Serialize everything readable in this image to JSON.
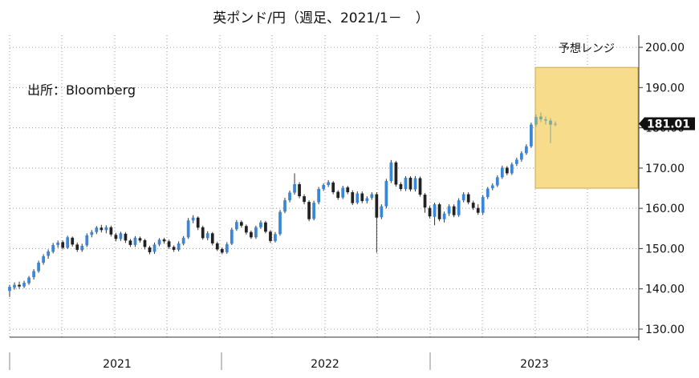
{
  "title": "英ポンド/円（週足、2021/1－　）",
  "source_note": "出所：Bloomberg",
  "forecast_label": "予想レンジ",
  "current_value_label": "181.01",
  "colors": {
    "up": "#3a86d8",
    "down": "#222222",
    "wick": "#333333",
    "forecast_fill": "#f7dc8c",
    "forecast_stroke": "#c9a84a",
    "current_bg": "#111111"
  },
  "chart_data": {
    "type": "candlestick",
    "ylim": [
      128,
      203
    ],
    "y_ticks": [
      "130.00",
      "140.00",
      "150.00",
      "160.00",
      "170.00",
      "180.00",
      "190.00",
      "200.00"
    ],
    "x_labels": [
      "2021",
      "2022",
      "2023"
    ],
    "forecast_range": {
      "low": 165,
      "high": 195
    },
    "current_value": 181.01,
    "candles": [
      [
        139.5,
        140.5,
        138.0,
        141.0
      ],
      [
        140.3,
        141.0,
        139.8,
        141.6
      ],
      [
        141.0,
        140.6,
        140.0,
        141.8
      ],
      [
        140.6,
        141.5,
        140.2,
        142.0
      ],
      [
        141.4,
        142.8,
        141.0,
        143.2
      ],
      [
        142.9,
        144.4,
        142.3,
        144.9
      ],
      [
        144.4,
        146.5,
        144.0,
        147.0
      ],
      [
        146.5,
        148.1,
        146.0,
        148.6
      ],
      [
        148.2,
        149.3,
        147.5,
        149.8
      ],
      [
        149.2,
        150.9,
        148.8,
        151.4
      ],
      [
        150.9,
        151.5,
        150.2,
        152.0
      ],
      [
        151.6,
        150.2,
        149.8,
        152.0
      ],
      [
        150.2,
        152.8,
        149.9,
        153.2
      ],
      [
        152.7,
        151.0,
        150.5,
        153.0
      ],
      [
        151.0,
        149.7,
        149.2,
        151.5
      ],
      [
        149.6,
        150.7,
        149.2,
        151.2
      ],
      [
        150.8,
        153.3,
        150.4,
        153.8
      ],
      [
        153.4,
        154.1,
        152.8,
        154.6
      ],
      [
        154.1,
        155.2,
        153.6,
        155.6
      ],
      [
        155.2,
        154.6,
        154.0,
        155.9
      ],
      [
        154.6,
        155.3,
        153.8,
        155.8
      ],
      [
        155.3,
        153.5,
        153.0,
        155.7
      ],
      [
        153.4,
        152.4,
        151.8,
        153.9
      ],
      [
        152.4,
        153.8,
        151.9,
        154.2
      ],
      [
        153.7,
        152.0,
        151.4,
        154.1
      ],
      [
        152.0,
        150.9,
        150.4,
        152.4
      ],
      [
        150.9,
        152.7,
        150.4,
        153.1
      ],
      [
        152.6,
        152.0,
        151.5,
        153.0
      ],
      [
        152.1,
        150.4,
        149.8,
        152.4
      ],
      [
        150.3,
        149.1,
        148.6,
        150.7
      ],
      [
        149.2,
        151.0,
        148.7,
        151.5
      ],
      [
        151.0,
        152.2,
        150.6,
        152.6
      ],
      [
        152.3,
        151.8,
        151.2,
        152.7
      ],
      [
        151.8,
        150.4,
        149.9,
        152.2
      ],
      [
        150.4,
        149.7,
        149.2,
        150.8
      ],
      [
        149.7,
        151.3,
        149.3,
        151.8
      ],
      [
        151.2,
        152.7,
        150.8,
        153.1
      ],
      [
        152.8,
        157.0,
        152.4,
        157.6
      ],
      [
        157.0,
        157.7,
        156.3,
        158.3
      ],
      [
        157.7,
        155.2,
        154.6,
        158.0
      ],
      [
        155.3,
        152.6,
        152.2,
        155.7
      ],
      [
        152.6,
        153.8,
        152.1,
        154.3
      ],
      [
        153.8,
        151.3,
        150.8,
        154.1
      ],
      [
        151.3,
        149.8,
        149.4,
        151.7
      ],
      [
        149.9,
        149.0,
        148.6,
        150.3
      ],
      [
        149.1,
        151.1,
        148.7,
        151.6
      ],
      [
        151.2,
        154.7,
        150.9,
        155.2
      ],
      [
        154.8,
        156.6,
        154.4,
        157.1
      ],
      [
        156.6,
        155.7,
        155.2,
        157.0
      ],
      [
        155.6,
        154.0,
        153.5,
        156.0
      ],
      [
        154.1,
        152.8,
        152.4,
        154.5
      ],
      [
        152.8,
        155.3,
        152.4,
        155.7
      ],
      [
        155.3,
        156.5,
        154.9,
        157.0
      ],
      [
        156.5,
        154.2,
        153.8,
        156.9
      ],
      [
        154.2,
        151.9,
        151.4,
        154.6
      ],
      [
        151.9,
        153.6,
        151.5,
        154.1
      ],
      [
        153.6,
        159.1,
        153.2,
        159.6
      ],
      [
        159.2,
        162.0,
        158.8,
        162.6
      ],
      [
        162.0,
        163.9,
        161.5,
        164.4
      ],
      [
        163.9,
        166.0,
        163.4,
        168.7
      ],
      [
        166.0,
        163.0,
        162.5,
        166.5
      ],
      [
        163.0,
        161.6,
        161.0,
        163.5
      ],
      [
        161.6,
        157.3,
        156.8,
        162.0
      ],
      [
        157.4,
        161.4,
        157.0,
        161.9
      ],
      [
        161.5,
        164.8,
        161.0,
        165.3
      ],
      [
        164.8,
        165.8,
        164.3,
        166.2
      ],
      [
        165.8,
        166.5,
        165.3,
        167.0
      ],
      [
        166.4,
        164.0,
        163.5,
        166.8
      ],
      [
        164.1,
        162.6,
        162.1,
        164.5
      ],
      [
        162.7,
        165.1,
        162.3,
        165.6
      ],
      [
        165.2,
        164.0,
        163.5,
        165.6
      ],
      [
        164.0,
        161.3,
        160.8,
        164.5
      ],
      [
        161.4,
        163.7,
        161.0,
        164.2
      ],
      [
        163.7,
        161.8,
        161.3,
        164.2
      ],
      [
        161.8,
        162.5,
        161.2,
        163.0
      ],
      [
        162.6,
        163.5,
        162.1,
        164.0
      ],
      [
        163.5,
        157.7,
        149.0,
        164.0
      ],
      [
        157.8,
        160.5,
        157.3,
        161.0
      ],
      [
        160.5,
        166.8,
        160.0,
        167.3
      ],
      [
        166.8,
        171.4,
        166.3,
        172.0
      ],
      [
        171.4,
        165.9,
        165.4,
        171.8
      ],
      [
        166.0,
        164.8,
        164.3,
        166.5
      ],
      [
        164.8,
        167.6,
        164.3,
        168.0
      ],
      [
        167.6,
        164.7,
        164.2,
        168.0
      ],
      [
        164.7,
        167.5,
        164.2,
        168.0
      ],
      [
        167.5,
        163.4,
        162.9,
        167.9
      ],
      [
        163.4,
        160.2,
        158.9,
        163.8
      ],
      [
        160.1,
        158.0,
        157.5,
        160.6
      ],
      [
        157.9,
        161.0,
        155.8,
        161.4
      ],
      [
        161.0,
        157.3,
        156.8,
        161.4
      ],
      [
        157.3,
        158.7,
        156.5,
        159.2
      ],
      [
        158.7,
        160.5,
        158.1,
        161.0
      ],
      [
        160.5,
        158.3,
        157.8,
        161.0
      ],
      [
        158.3,
        162.0,
        157.9,
        162.5
      ],
      [
        162.0,
        163.5,
        161.5,
        164.0
      ],
      [
        163.5,
        161.5,
        161.0,
        164.0
      ],
      [
        161.4,
        160.1,
        159.6,
        161.9
      ],
      [
        160.1,
        158.9,
        158.4,
        161.0
      ],
      [
        158.9,
        162.8,
        158.4,
        163.3
      ],
      [
        162.8,
        164.9,
        162.3,
        165.3
      ],
      [
        165.0,
        165.7,
        164.5,
        166.2
      ],
      [
        165.7,
        167.7,
        165.3,
        168.2
      ],
      [
        167.7,
        170.1,
        167.3,
        170.6
      ],
      [
        170.1,
        168.7,
        168.2,
        170.5
      ],
      [
        168.7,
        170.9,
        168.3,
        171.4
      ],
      [
        171.0,
        172.1,
        170.5,
        172.6
      ],
      [
        172.1,
        173.7,
        171.6,
        174.2
      ],
      [
        173.7,
        175.4,
        173.3,
        175.9
      ],
      [
        175.4,
        180.8,
        175.0,
        181.3
      ],
      [
        180.8,
        182.7,
        180.3,
        183.3
      ],
      [
        182.8,
        182.1,
        181.4,
        183.8
      ],
      [
        182.1,
        181.8,
        180.8,
        182.8
      ],
      [
        181.8,
        180.8,
        176.2,
        182.4
      ],
      [
        180.9,
        181.0,
        180.4,
        181.6
      ]
    ]
  }
}
